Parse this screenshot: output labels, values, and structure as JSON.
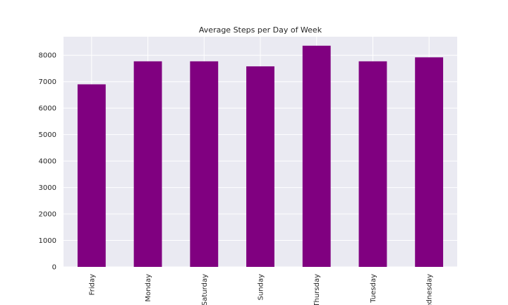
{
  "chart_data": {
    "type": "bar",
    "title": "Average Steps per Day of Week",
    "xlabel": "",
    "ylabel": "",
    "categories": [
      "Friday",
      "Monday",
      "Saturday",
      "Sunday",
      "Thursday",
      "Tuesday",
      "Wednesday"
    ],
    "values": [
      6900,
      7770,
      7770,
      7580,
      8360,
      7770,
      7920
    ],
    "ylim": [
      0,
      8700
    ],
    "yticks": [
      0,
      1000,
      2000,
      3000,
      4000,
      5000,
      6000,
      7000,
      8000
    ],
    "grid": true,
    "legend": "none",
    "colors": {
      "bar": "#800080",
      "plot_background": "#eaeaf2",
      "grid": "#ffffff",
      "text": "#262626"
    }
  }
}
